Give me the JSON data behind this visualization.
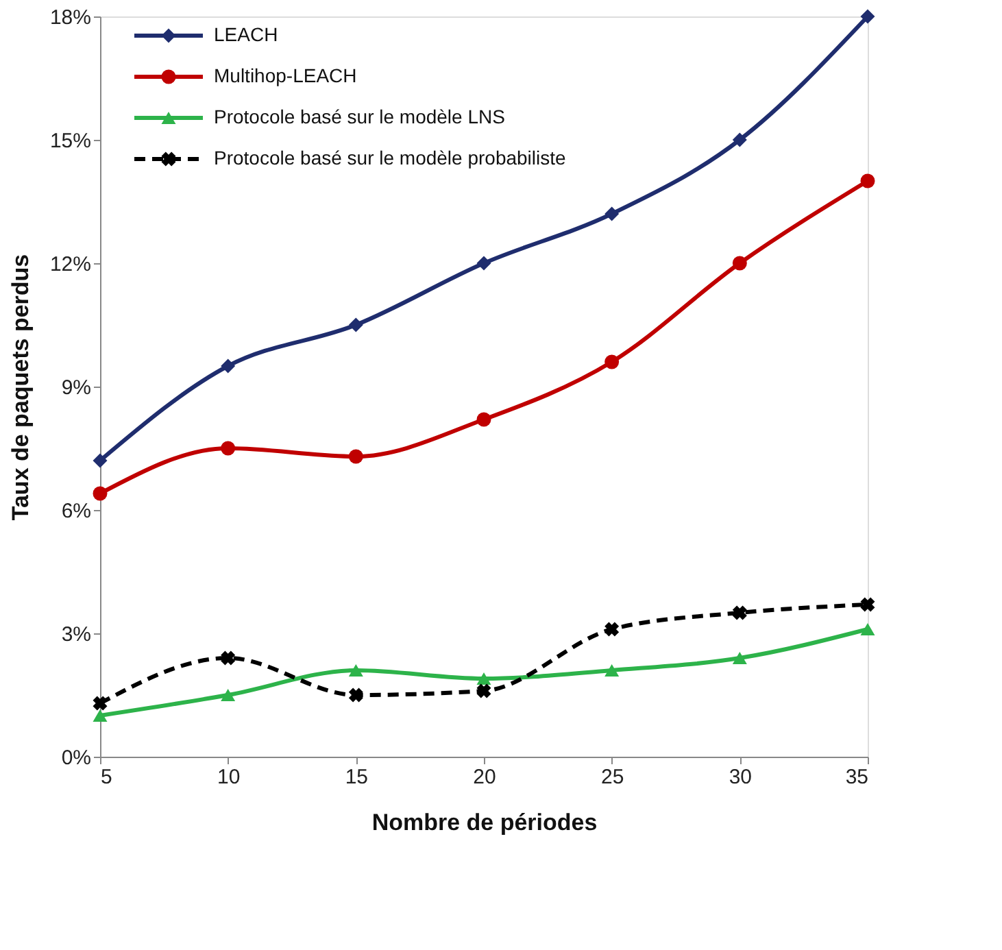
{
  "chart_data": {
    "type": "line",
    "xlabel": "Nombre de périodes",
    "ylabel": "Taux de paquets perdus",
    "x": [
      5,
      10,
      15,
      20,
      25,
      30,
      35
    ],
    "xlim": [
      5,
      35
    ],
    "xticks": [
      5,
      10,
      15,
      20,
      25,
      30,
      35
    ],
    "ylim": [
      0,
      18
    ],
    "yticks": [
      {
        "value": 0,
        "label": "0%"
      },
      {
        "value": 3,
        "label": "3%"
      },
      {
        "value": 6,
        "label": "6%"
      },
      {
        "value": 9,
        "label": "9%"
      },
      {
        "value": 12,
        "label": "12%"
      },
      {
        "value": 15,
        "label": "15%"
      },
      {
        "value": 18,
        "label": "18%"
      }
    ],
    "grid": false,
    "legend": "top left",
    "series": [
      {
        "name": "LEACH",
        "color": "#1f2d6e",
        "marker": "diamond",
        "line_style": "solid",
        "values": [
          7.2,
          9.5,
          10.5,
          12.0,
          13.2,
          15.0,
          18.0
        ]
      },
      {
        "name": "Multihop-LEACH",
        "color": "#c00000",
        "marker": "circle",
        "line_style": "solid",
        "values": [
          6.4,
          7.5,
          7.3,
          8.2,
          9.6,
          12.0,
          14.0
        ]
      },
      {
        "name": "Protocole basé sur le modèle LNS",
        "color": "#2db34a",
        "marker": "triangle",
        "line_style": "solid",
        "values": [
          1.0,
          1.5,
          2.1,
          1.9,
          2.1,
          2.4,
          3.1
        ]
      },
      {
        "name": "Protocole basé sur le modèle probabiliste",
        "color": "#000000",
        "marker": "cross",
        "line_style": "dashed",
        "values": [
          1.3,
          2.4,
          1.5,
          1.6,
          3.1,
          3.5,
          3.7
        ]
      }
    ]
  }
}
